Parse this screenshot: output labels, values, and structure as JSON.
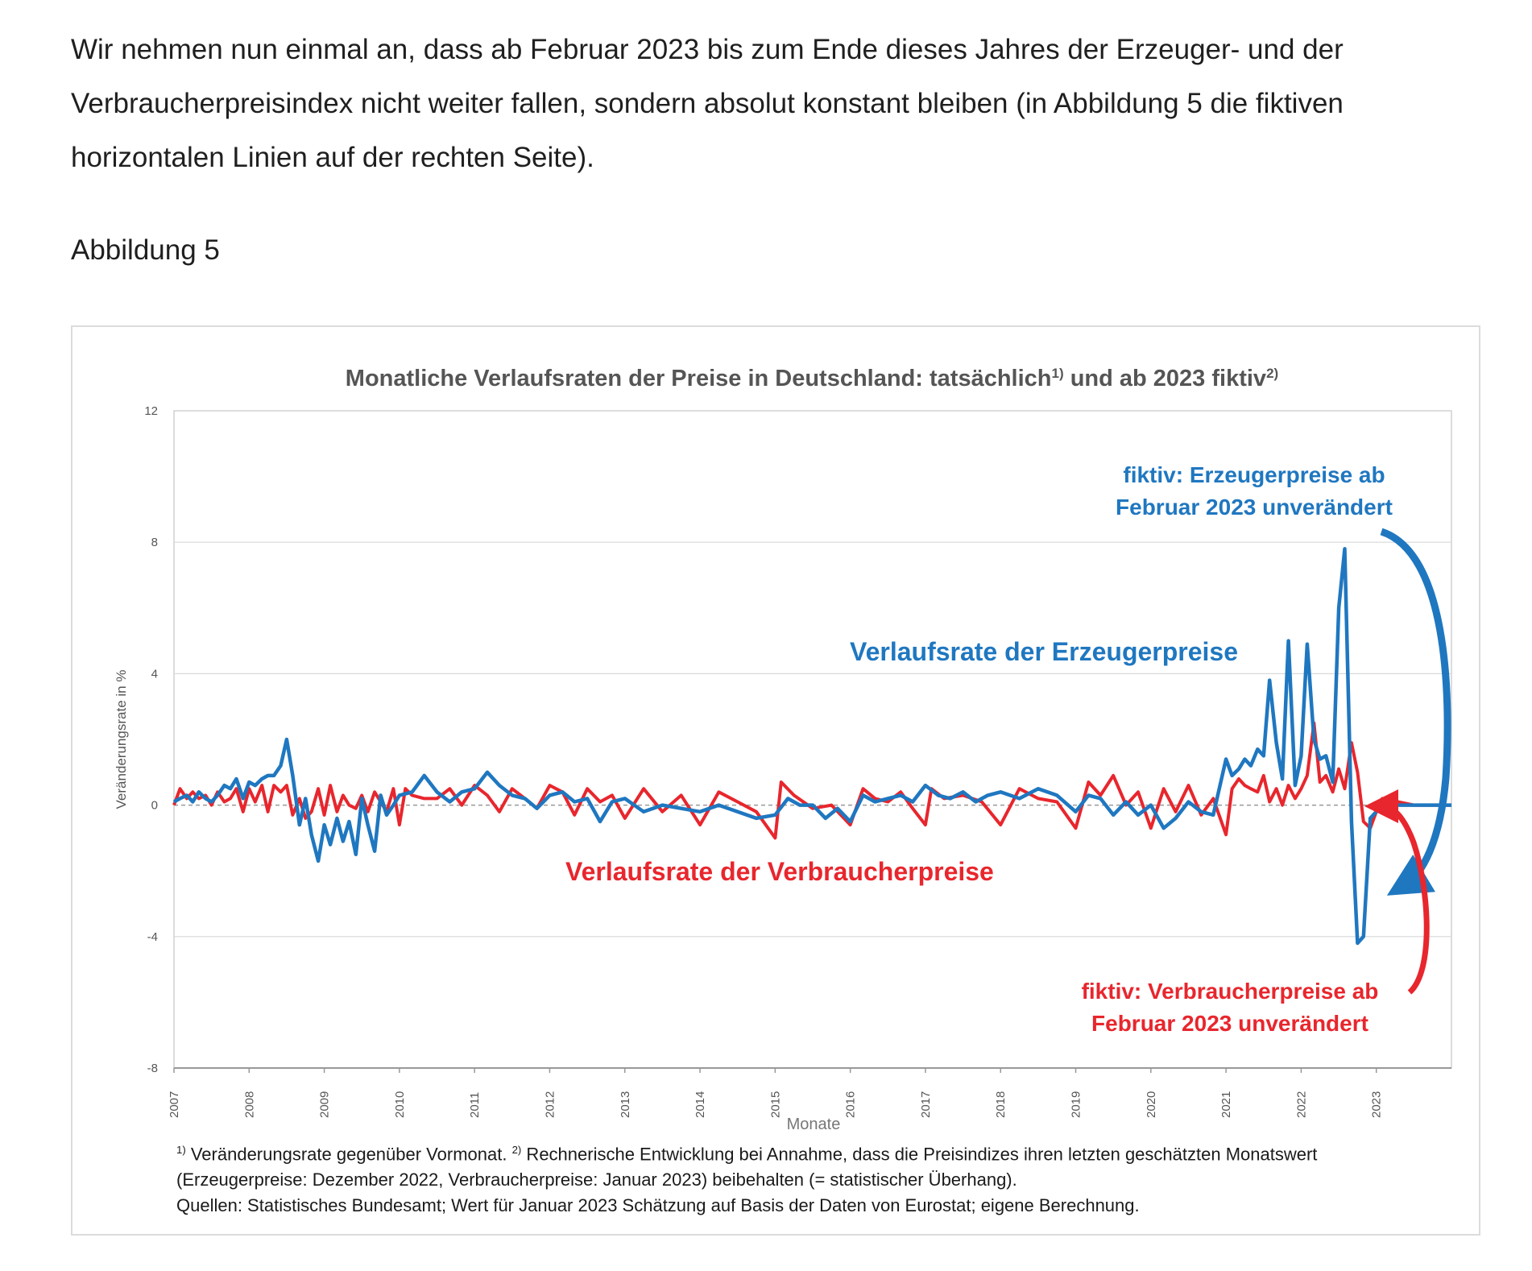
{
  "article": {
    "paragraph": "Wir nehmen nun einmal an, dass ab Februar 2023 bis zum Ende dieses Jahres der Erzeuger- und der Verbraucherpreisindex nicht weiter fallen, sondern absolut konstant bleiben (in Abbildung 5 die fiktiven horizontalen Linien auf der rechten Seite).",
    "figure_label": "Abbildung 5"
  },
  "footnotes": {
    "line1_mark1": "1)",
    "line1_text1": " Veränderungsrate gegenüber Vormonat. ",
    "line1_mark2": "2)",
    "line1_text2": " Rechnerische Entwicklung bei Annahme, dass die Preisindizes ihren letzten geschätzten Monatswert",
    "line2": "(Erzeugerpreise: Dezember 2022, Verbraucherpreise: Januar 2023) beibehalten (= statistischer Überhang).",
    "line3": "Quellen: Statistisches Bundesamt; Wert für Januar 2023 Schätzung auf Basis der Daten von Eurostat; eigene Berechnung."
  },
  "chart_data": {
    "type": "line",
    "title": "Monatliche Verlaufsraten der Preise in Deutschland: tatsächlich",
    "title_mark1": "1)",
    "title_mid": " und ab 2023 fiktiv",
    "title_mark2": "2)",
    "xlabel": "Monate",
    "ylabel": "Veränderungsrate in %",
    "ylim": [
      -8,
      12
    ],
    "yticks": [
      -8,
      -4,
      0,
      4,
      8,
      12
    ],
    "xlim": [
      2007,
      2024
    ],
    "xticks": [
      "2007",
      "2008",
      "2009",
      "2010",
      "2011",
      "2012",
      "2013",
      "2014",
      "2015",
      "2016",
      "2017",
      "2018",
      "2019",
      "2020",
      "2021",
      "2022",
      "2023"
    ],
    "grid": true,
    "colors": {
      "producer": "#1f77c0",
      "consumer": "#e8262d",
      "zero_line": "#9a9a9a"
    },
    "annotations": {
      "producer_label": "Verlaufsrate der Erzeugerpreise",
      "consumer_label": "Verlaufsrate der Verbraucherpreise",
      "fiktiv_producer_line1": "fiktiv: Erzeugerpreise ab",
      "fiktiv_producer_line2": "Februar 2023 unverändert",
      "fiktiv_consumer_line1": "fiktiv: Verbraucherpreise ab",
      "fiktiv_consumer_line2": "Februar 2023 unverändert"
    },
    "series": [
      {
        "key": "producer",
        "x": [
          2007.0,
          2007.08,
          2007.17,
          2007.25,
          2007.33,
          2007.42,
          2007.5,
          2007.58,
          2007.67,
          2007.75,
          2007.83,
          2007.92,
          2008.0,
          2008.08,
          2008.17,
          2008.25,
          2008.33,
          2008.42,
          2008.5,
          2008.58,
          2008.67,
          2008.75,
          2008.83,
          2008.92,
          2009.0,
          2009.08,
          2009.17,
          2009.25,
          2009.33,
          2009.42,
          2009.5,
          2009.58,
          2009.67,
          2009.75,
          2009.83,
          2009.92,
          2010.0,
          2010.17,
          2010.33,
          2010.5,
          2010.67,
          2010.83,
          2011.0,
          2011.17,
          2011.33,
          2011.5,
          2011.67,
          2011.83,
          2012.0,
          2012.17,
          2012.33,
          2012.5,
          2012.67,
          2012.83,
          2013.0,
          2013.25,
          2013.5,
          2013.75,
          2014.0,
          2014.25,
          2014.5,
          2014.75,
          2015.0,
          2015.17,
          2015.33,
          2015.5,
          2015.67,
          2015.83,
          2016.0,
          2016.17,
          2016.33,
          2016.5,
          2016.67,
          2016.83,
          2017.0,
          2017.17,
          2017.33,
          2017.5,
          2017.67,
          2017.83,
          2018.0,
          2018.25,
          2018.5,
          2018.75,
          2019.0,
          2019.17,
          2019.33,
          2019.5,
          2019.67,
          2019.83,
          2020.0,
          2020.17,
          2020.33,
          2020.5,
          2020.67,
          2020.83,
          2021.0,
          2021.08,
          2021.17,
          2021.25,
          2021.33,
          2021.42,
          2021.5,
          2021.58,
          2021.67,
          2021.75,
          2021.83,
          2021.92,
          2022.0,
          2022.08,
          2022.17,
          2022.25,
          2022.33,
          2022.42,
          2022.5,
          2022.58,
          2022.67,
          2022.75,
          2022.83,
          2022.92,
          2023.0,
          2023.08,
          2023.5,
          2024.0
        ],
        "values": [
          0.1,
          0.2,
          0.3,
          0.1,
          0.4,
          0.2,
          0.1,
          0.3,
          0.6,
          0.5,
          0.8,
          0.2,
          0.7,
          0.6,
          0.8,
          0.9,
          0.9,
          1.2,
          2.0,
          0.9,
          -0.6,
          0.2,
          -0.9,
          -1.7,
          -0.6,
          -1.2,
          -0.4,
          -1.1,
          -0.5,
          -1.5,
          0.2,
          -0.6,
          -1.4,
          0.3,
          -0.3,
          0.0,
          0.3,
          0.4,
          0.9,
          0.4,
          0.1,
          0.4,
          0.5,
          1.0,
          0.6,
          0.3,
          0.2,
          -0.1,
          0.3,
          0.4,
          0.1,
          0.2,
          -0.5,
          0.1,
          0.2,
          -0.2,
          0.0,
          -0.1,
          -0.2,
          0.0,
          -0.2,
          -0.4,
          -0.3,
          0.2,
          0.0,
          0.0,
          -0.4,
          -0.1,
          -0.5,
          0.3,
          0.1,
          0.2,
          0.3,
          0.1,
          0.6,
          0.3,
          0.2,
          0.4,
          0.1,
          0.3,
          0.4,
          0.2,
          0.5,
          0.3,
          -0.2,
          0.3,
          0.2,
          -0.3,
          0.1,
          -0.3,
          0.0,
          -0.7,
          -0.4,
          0.1,
          -0.2,
          -0.3,
          1.4,
          0.9,
          1.1,
          1.4,
          1.2,
          1.7,
          1.5,
          3.8,
          1.9,
          0.8,
          5.0,
          0.6,
          1.5,
          4.9,
          2.0,
          1.4,
          1.5,
          0.7,
          6.0,
          7.8,
          -0.5,
          -4.2,
          -4.0,
          -0.4,
          -0.2,
          0.0,
          0.0,
          0.0
        ]
      },
      {
        "key": "consumer",
        "x": [
          2007.0,
          2007.08,
          2007.17,
          2007.25,
          2007.33,
          2007.42,
          2007.5,
          2007.58,
          2007.67,
          2007.75,
          2007.83,
          2007.92,
          2008.0,
          2008.08,
          2008.17,
          2008.25,
          2008.33,
          2008.42,
          2008.5,
          2008.58,
          2008.67,
          2008.75,
          2008.83,
          2008.92,
          2009.0,
          2009.08,
          2009.17,
          2009.25,
          2009.33,
          2009.42,
          2009.5,
          2009.58,
          2009.67,
          2009.75,
          2009.83,
          2009.92,
          2010.0,
          2010.08,
          2010.17,
          2010.33,
          2010.5,
          2010.67,
          2010.83,
          2011.0,
          2011.17,
          2011.33,
          2011.5,
          2011.67,
          2011.83,
          2012.0,
          2012.17,
          2012.33,
          2012.5,
          2012.67,
          2012.83,
          2013.0,
          2013.25,
          2013.5,
          2013.75,
          2014.0,
          2014.25,
          2014.5,
          2014.75,
          2015.0,
          2015.08,
          2015.25,
          2015.5,
          2015.75,
          2016.0,
          2016.17,
          2016.33,
          2016.5,
          2016.67,
          2016.83,
          2017.0,
          2017.08,
          2017.25,
          2017.5,
          2017.75,
          2018.0,
          2018.25,
          2018.5,
          2018.75,
          2019.0,
          2019.17,
          2019.33,
          2019.5,
          2019.67,
          2019.83,
          2020.0,
          2020.17,
          2020.33,
          2020.5,
          2020.67,
          2020.83,
          2021.0,
          2021.08,
          2021.17,
          2021.25,
          2021.33,
          2021.42,
          2021.5,
          2021.58,
          2021.67,
          2021.75,
          2021.83,
          2021.92,
          2022.0,
          2022.08,
          2022.17,
          2022.25,
          2022.33,
          2022.42,
          2022.5,
          2022.58,
          2022.67,
          2022.75,
          2022.83,
          2022.92,
          2023.0,
          2023.08,
          2023.5,
          2024.0
        ],
        "values": [
          0.0,
          0.5,
          0.2,
          0.4,
          0.2,
          0.3,
          0.0,
          0.4,
          0.1,
          0.2,
          0.5,
          -0.2,
          0.5,
          0.1,
          0.6,
          -0.2,
          0.6,
          0.4,
          0.6,
          -0.3,
          0.2,
          -0.4,
          -0.2,
          0.5,
          -0.3,
          0.6,
          -0.2,
          0.3,
          0.0,
          -0.1,
          0.3,
          -0.2,
          0.4,
          0.1,
          -0.2,
          0.5,
          -0.6,
          0.5,
          0.3,
          0.2,
          0.2,
          0.5,
          0.0,
          0.6,
          0.3,
          -0.2,
          0.5,
          0.2,
          -0.1,
          0.6,
          0.4,
          -0.3,
          0.5,
          0.1,
          0.3,
          -0.4,
          0.5,
          -0.2,
          0.3,
          -0.6,
          0.4,
          0.1,
          -0.2,
          -1.0,
          0.7,
          0.3,
          -0.1,
          0.0,
          -0.6,
          0.5,
          0.2,
          0.1,
          0.4,
          -0.1,
          -0.6,
          0.5,
          0.2,
          0.3,
          0.1,
          -0.6,
          0.5,
          0.2,
          0.1,
          -0.7,
          0.7,
          0.3,
          0.9,
          0.0,
          0.4,
          -0.7,
          0.5,
          -0.2,
          0.6,
          -0.3,
          0.2,
          -0.9,
          0.5,
          0.8,
          0.6,
          0.5,
          0.4,
          0.9,
          0.1,
          0.5,
          0.0,
          0.6,
          0.2,
          0.5,
          0.9,
          2.5,
          0.7,
          0.9,
          0.4,
          1.1,
          0.5,
          1.9,
          1.0,
          -0.5,
          -0.7,
          -0.2,
          0.2,
          0.0,
          0.0
        ]
      }
    ]
  }
}
